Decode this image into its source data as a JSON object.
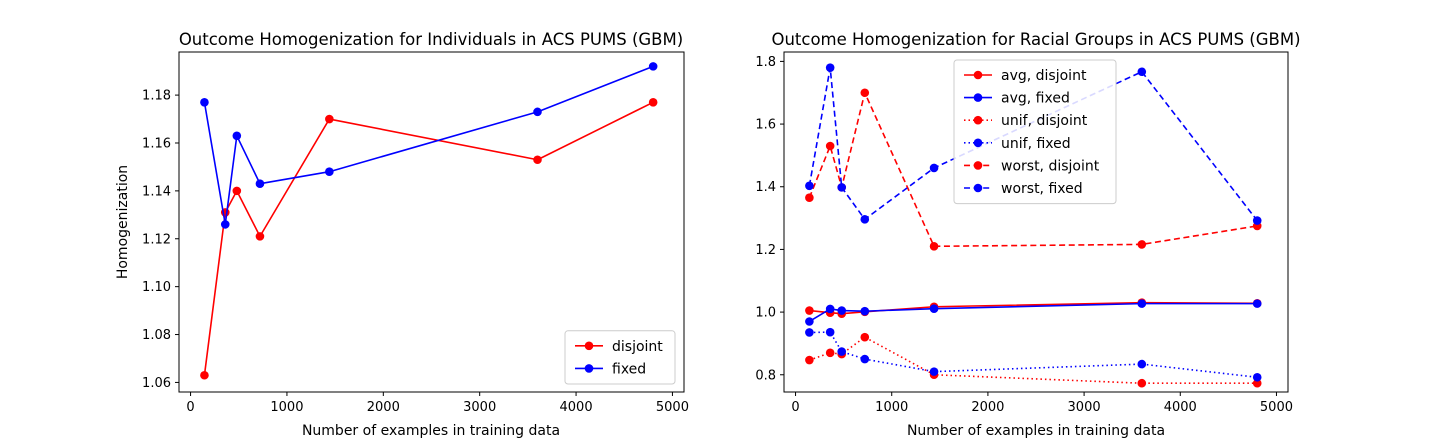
{
  "chart_data": [
    {
      "type": "line",
      "title": "Outcome Homogenization for Individuals in ACS PUMS (GBM)",
      "xlabel": "Number of examples in training data",
      "ylabel": "Homogenization",
      "xlim": [
        -120,
        5120
      ],
      "ylim": [
        1.056,
        1.198
      ],
      "xticks": [
        0,
        1000,
        2000,
        3000,
        4000,
        5000
      ],
      "yticks": [
        1.06,
        1.08,
        1.1,
        1.12,
        1.14,
        1.16,
        1.18
      ],
      "ytick_decimals": 2,
      "legend_position": "lower-right",
      "series": [
        {
          "name": "disjoint",
          "color": "#ff0000",
          "dash": "solid",
          "x": [
            144,
            360,
            480,
            720,
            1440,
            3600,
            4800
          ],
          "y": [
            1.063,
            1.131,
            1.14,
            1.121,
            1.17,
            1.153,
            1.177
          ]
        },
        {
          "name": "fixed",
          "color": "#0000ff",
          "dash": "solid",
          "x": [
            144,
            360,
            480,
            720,
            1440,
            3600,
            4800
          ],
          "y": [
            1.177,
            1.126,
            1.163,
            1.143,
            1.148,
            1.173,
            1.192
          ]
        }
      ]
    },
    {
      "type": "line",
      "title": "Outcome Homogenization for Racial Groups in ACS PUMS (GBM)",
      "xlabel": "Number of examples in training data",
      "ylabel": "",
      "xlim": [
        -120,
        5120
      ],
      "ylim": [
        0.745,
        1.83
      ],
      "xticks": [
        0,
        1000,
        2000,
        3000,
        4000,
        5000
      ],
      "yticks": [
        0.8,
        1.0,
        1.2,
        1.4,
        1.6,
        1.8
      ],
      "ytick_decimals": 1,
      "legend_position": "upper-center",
      "series": [
        {
          "name": "avg, disjoint",
          "color": "#ff0000",
          "dash": "solid",
          "x": [
            144,
            360,
            480,
            720,
            1440,
            3600,
            4800
          ],
          "y": [
            1.005,
            0.998,
            0.995,
            1.001,
            1.017,
            1.03,
            1.028
          ]
        },
        {
          "name": "avg, fixed",
          "color": "#0000ff",
          "dash": "solid",
          "x": [
            144,
            360,
            480,
            720,
            1440,
            3600,
            4800
          ],
          "y": [
            0.97,
            1.01,
            1.005,
            1.003,
            1.011,
            1.027,
            1.027
          ]
        },
        {
          "name": "unif, disjoint",
          "color": "#ff0000",
          "dash": "dotted",
          "x": [
            144,
            360,
            480,
            720,
            1440,
            3600,
            4800
          ],
          "y": [
            0.847,
            0.87,
            0.866,
            0.92,
            0.8,
            0.773,
            0.773
          ]
        },
        {
          "name": "unif, fixed",
          "color": "#0000ff",
          "dash": "dotted",
          "x": [
            144,
            360,
            480,
            720,
            1440,
            3600,
            4800
          ],
          "y": [
            0.935,
            0.936,
            0.874,
            0.85,
            0.81,
            0.834,
            0.792
          ]
        },
        {
          "name": "worst, disjoint",
          "color": "#ff0000",
          "dash": "dashed",
          "x": [
            144,
            360,
            480,
            720,
            1440,
            3600,
            4800
          ],
          "y": [
            1.365,
            1.53,
            1.398,
            1.7,
            1.21,
            1.216,
            1.275
          ]
        },
        {
          "name": "worst, fixed",
          "color": "#0000ff",
          "dash": "dashed",
          "x": [
            144,
            360,
            480,
            720,
            1440,
            3600,
            4800
          ],
          "y": [
            1.403,
            1.78,
            1.398,
            1.296,
            1.46,
            1.767,
            1.292
          ]
        }
      ]
    }
  ]
}
